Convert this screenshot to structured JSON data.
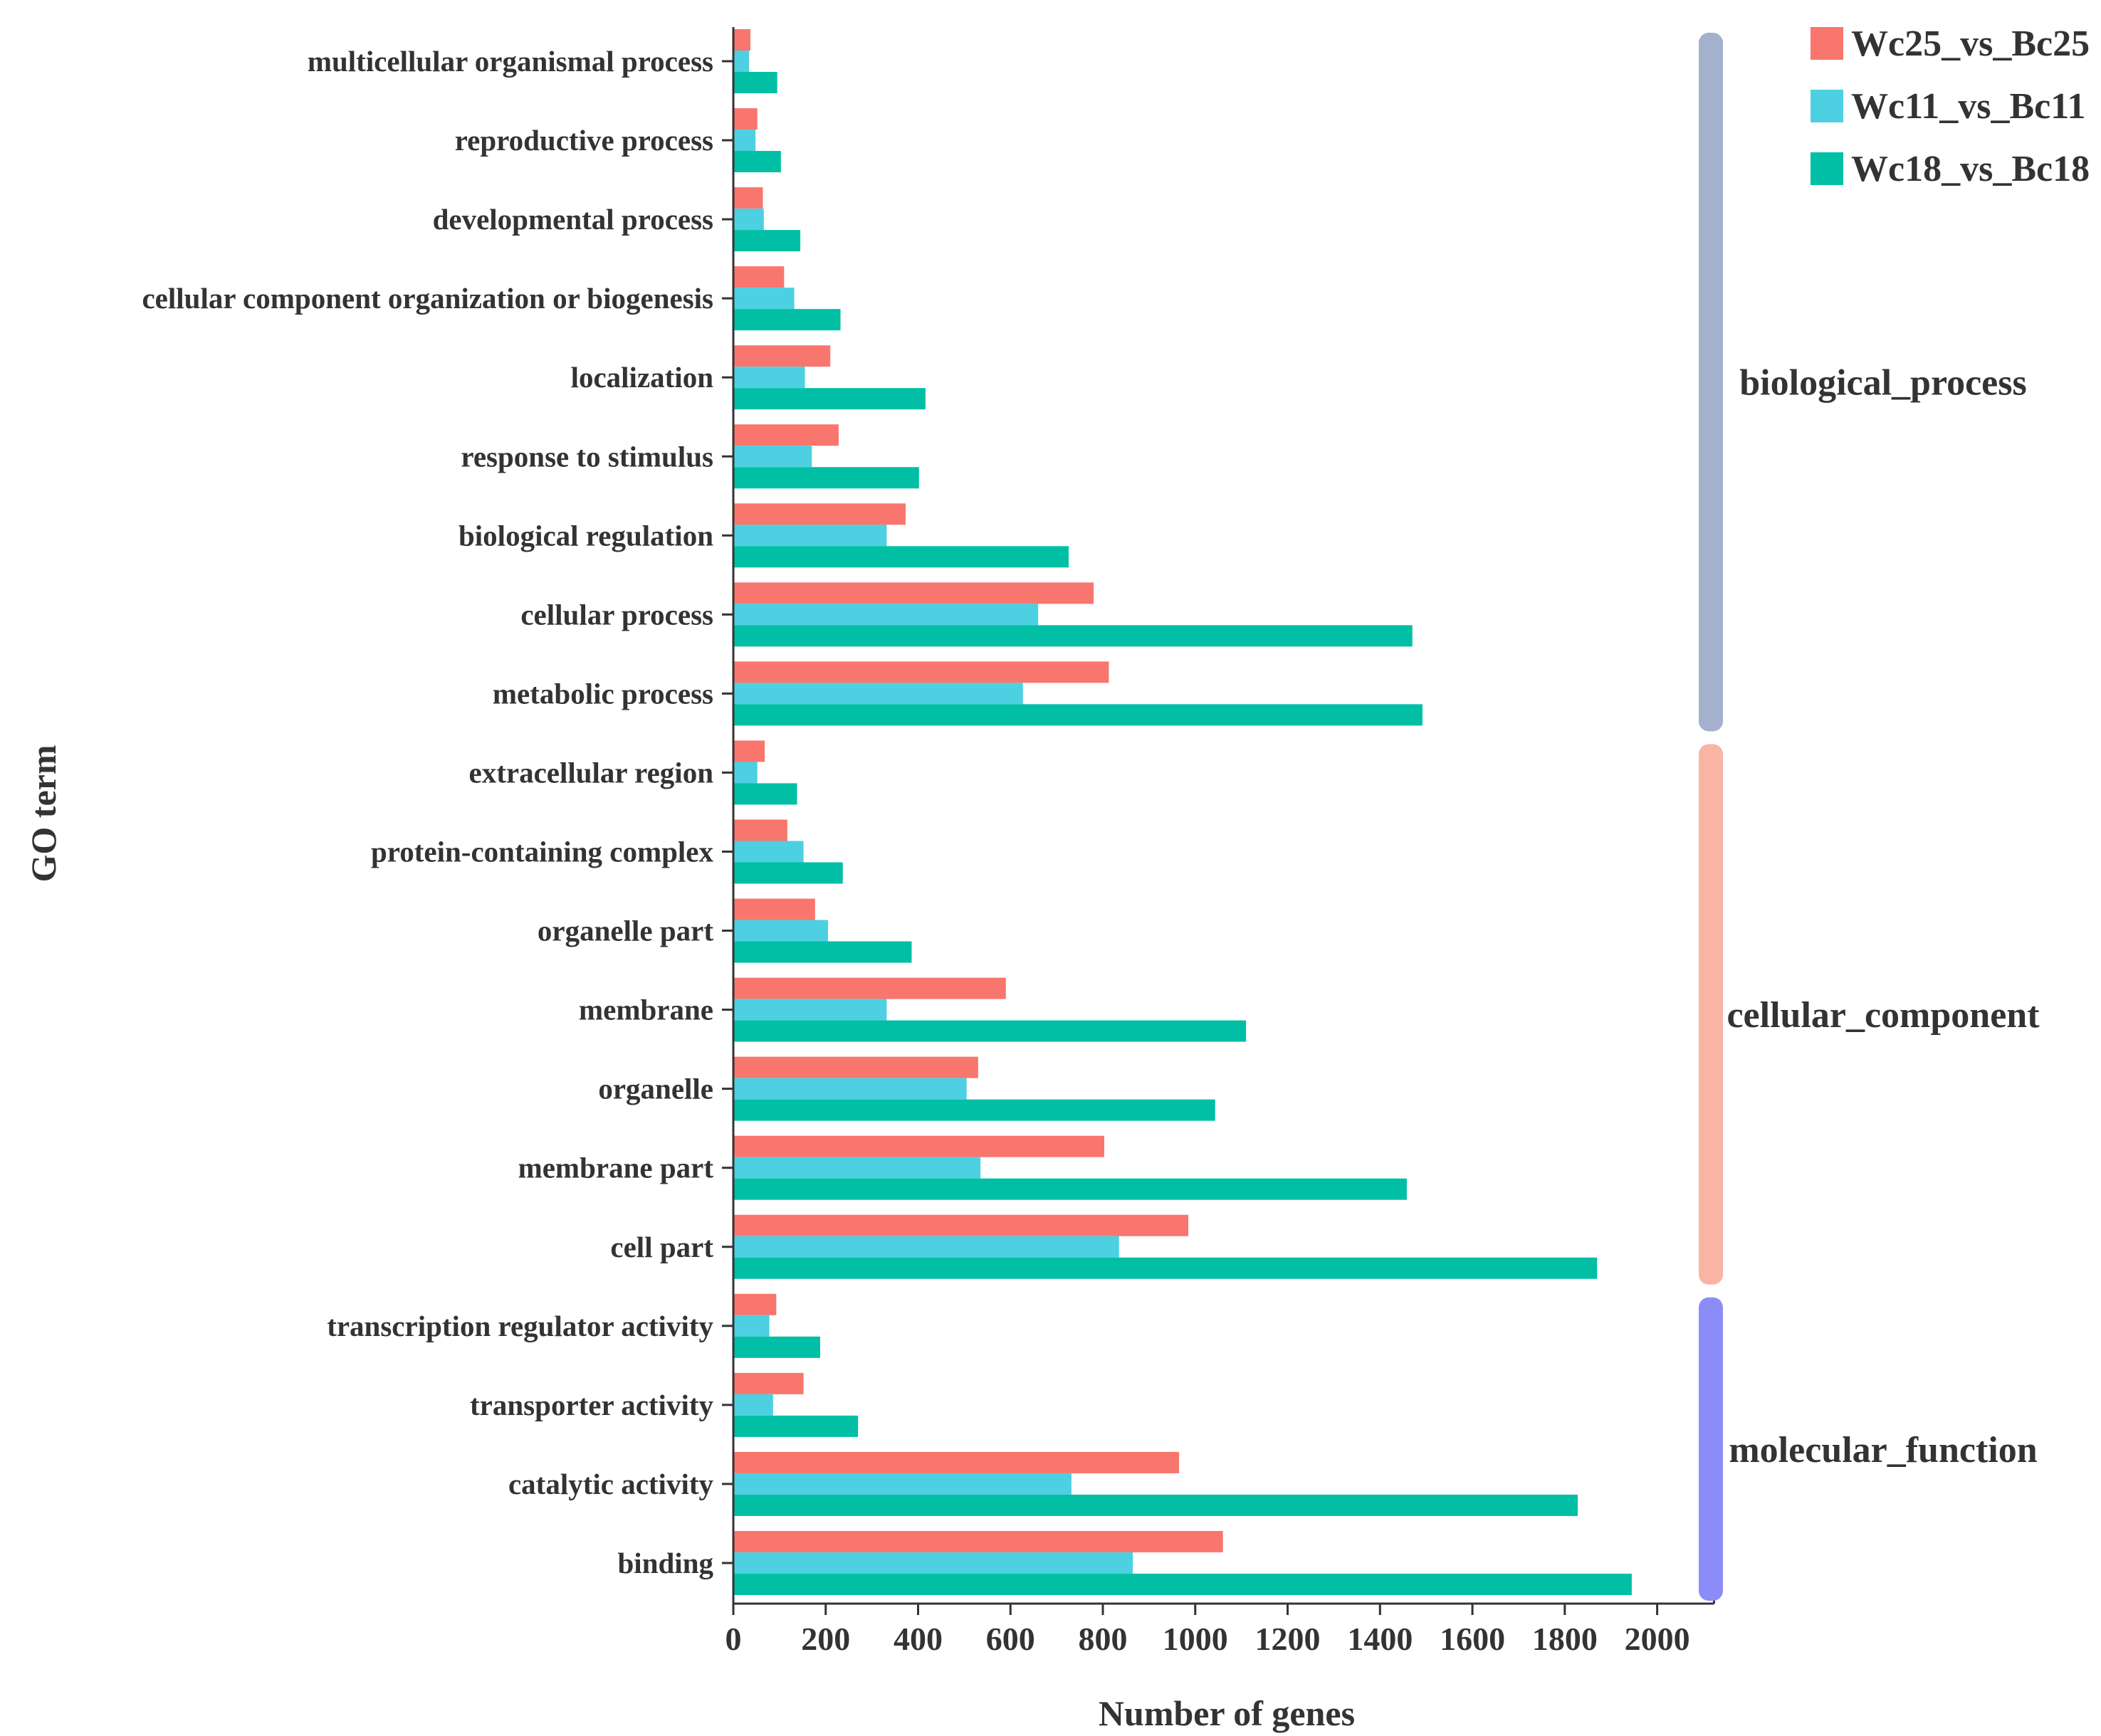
{
  "chart_data": {
    "type": "bar",
    "orientation": "horizontal",
    "title": "",
    "xlabel": "Number of genes",
    "ylabel": "GO term",
    "xlim": [
      0,
      2100
    ],
    "xticks": [
      0,
      200,
      400,
      600,
      800,
      1000,
      1200,
      1400,
      1600,
      1800,
      2000
    ],
    "categories": [
      "multicellular organismal process",
      "reproductive process",
      "developmental process",
      "cellular component organization or biogenesis",
      "localization",
      "response to stimulus",
      "biological regulation",
      "cellular process",
      "metabolic process",
      "extracellular region",
      "protein-containing complex",
      "organelle part",
      "membrane",
      "organelle",
      "membrane part",
      "cell part",
      "transcription regulator activity",
      "transporter activity",
      "catalytic activity",
      "binding"
    ],
    "series": [
      {
        "name": "Wc25_vs_Bc25",
        "color": "#F8766D",
        "values": [
          37,
          52,
          64,
          110,
          210,
          228,
          373,
          780,
          813,
          68,
          117,
          177,
          590,
          530,
          803,
          985,
          93,
          152,
          965,
          1060
        ]
      },
      {
        "name": "Wc11_vs_Bc11",
        "color": "#4DD0E1",
        "values": [
          34,
          48,
          66,
          132,
          155,
          170,
          332,
          660,
          627,
          52,
          152,
          205,
          332,
          505,
          535,
          835,
          78,
          86,
          732,
          865
        ]
      },
      {
        "name": "Wc18_vs_Bc18",
        "color": "#00BFA5",
        "values": [
          95,
          103,
          145,
          232,
          416,
          402,
          726,
          1470,
          1492,
          138,
          237,
          386,
          1110,
          1043,
          1458,
          1870,
          188,
          270,
          1828,
          1945
        ]
      }
    ],
    "groups": [
      {
        "name": "biological_process",
        "color": "#A3B1CC",
        "count": 9
      },
      {
        "name": "cellular_component",
        "color": "#F9B5A4",
        "count": 7
      },
      {
        "name": "molecular_function",
        "color": "#8C8CF9",
        "count": 4
      }
    ],
    "legend_position": "top-right"
  }
}
